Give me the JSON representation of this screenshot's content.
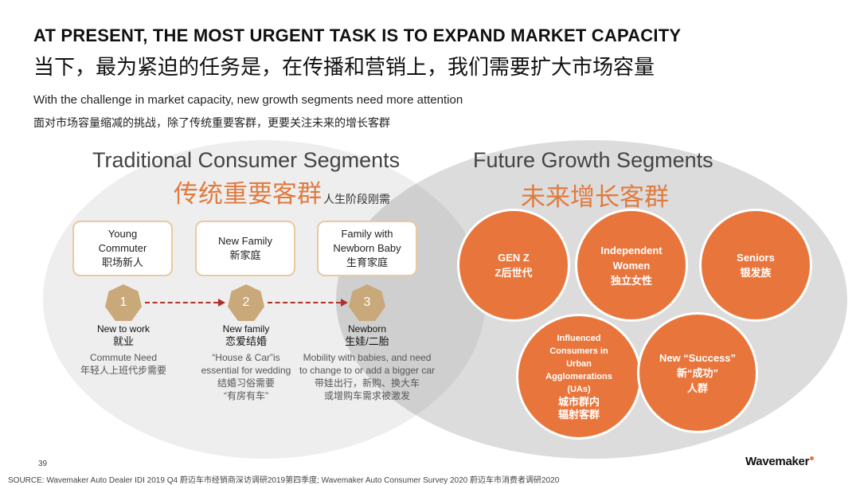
{
  "header": {
    "title_en": "AT PRESENT, THE MOST URGENT TASK IS TO EXPAND MARKET CAPACITY",
    "title_cn": "当下，最为紧迫的任务是，在传播和营销上，我们需要扩大市场容量",
    "subtitle_en": "With the challenge in market capacity, new growth segments need more attention",
    "subtitle_cn": "面对市场容量缩减的挑战，除了传统重要客群，更要关注未来的增长客群"
  },
  "traditional": {
    "title_en": "Traditional Consumer Segments",
    "title_cn": "传统重要客群",
    "subtitle_cn": "人生阶段刚需",
    "segments": [
      {
        "line1": "Young",
        "line2": "Commuter",
        "cn": "职场新人"
      },
      {
        "line1": "New Family",
        "line2": "",
        "cn": "新家庭"
      },
      {
        "line1": "Family with",
        "line2": "Newborn Baby",
        "cn": "生育家庭"
      }
    ],
    "stages": [
      {
        "num": "1",
        "title": "New to work",
        "title_cn": "就业",
        "desc_lines": [
          "Commute Need",
          "年轻人上班代步需要"
        ]
      },
      {
        "num": "2",
        "title": "New family",
        "title_cn": "恋爱结婚",
        "desc_lines": [
          "“House & Car”is",
          "essential for wedding",
          "结婚习俗需要",
          "“有房有车”"
        ]
      },
      {
        "num": "3",
        "title": "Newborn",
        "title_cn": "生娃/二胎",
        "desc_lines": [
          "Mobility with babies, and need",
          "to change to or add a bigger car",
          "带娃出行，新购、换大车",
          "或增购车需求被激发"
        ]
      }
    ]
  },
  "future": {
    "title_en": "Future Growth Segments",
    "title_cn": "未来增长客群",
    "segments": [
      {
        "lines": [
          "GEN Z",
          "Z后世代"
        ]
      },
      {
        "lines": [
          "Independent",
          "Women",
          "独立女性"
        ]
      },
      {
        "lines": [
          "Seniors",
          "银发族"
        ]
      },
      {
        "lines": [
          "Influenced",
          "Consumers in",
          "Urban",
          "Agglomerations",
          "(UAs)",
          "城市群内",
          "辐射客群"
        ]
      },
      {
        "lines": [
          "New “Success”",
          "新“成功”",
          "人群"
        ]
      }
    ]
  },
  "footer": {
    "page_number": "39",
    "source": "SOURCE: Wavemaker Auto Dealer IDI 2019 Q4 蔚迈车市经销商深访调研2019第四季度; Wavemaker Auto Consumer Survey 2020 蔚迈车市消费者调研2020",
    "logo": "Wavemaker"
  },
  "colors": {
    "accent": "#e8763c",
    "box_border": "#e8c9a0",
    "stage_badge": "#c9a87a",
    "arrow": "#b0302a"
  }
}
